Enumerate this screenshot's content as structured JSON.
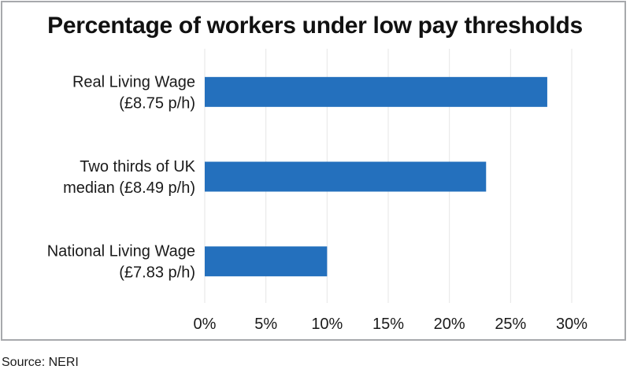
{
  "chart_data": {
    "type": "bar",
    "orientation": "horizontal",
    "title": "Percentage of workers under low pay thresholds",
    "categories": [
      [
        "Real Living Wage",
        "(£8.75 p/h)"
      ],
      [
        "Two thirds of UK",
        "median (£8.49 p/h)"
      ],
      [
        "National Living Wage",
        "(£7.83 p/h)"
      ]
    ],
    "values": [
      0.28,
      0.23,
      0.1
    ],
    "xlim": [
      0,
      0.3
    ],
    "xticks": [
      "0%",
      "5%",
      "10%",
      "15%",
      "20%",
      "25%",
      "30%"
    ],
    "xtick_values": [
      0,
      0.05,
      0.1,
      0.15,
      0.2,
      0.25,
      0.3
    ],
    "grid": true,
    "bar_color": "#2470bd",
    "grid_color": "#e6e6e6"
  },
  "source": "Source: NERI"
}
